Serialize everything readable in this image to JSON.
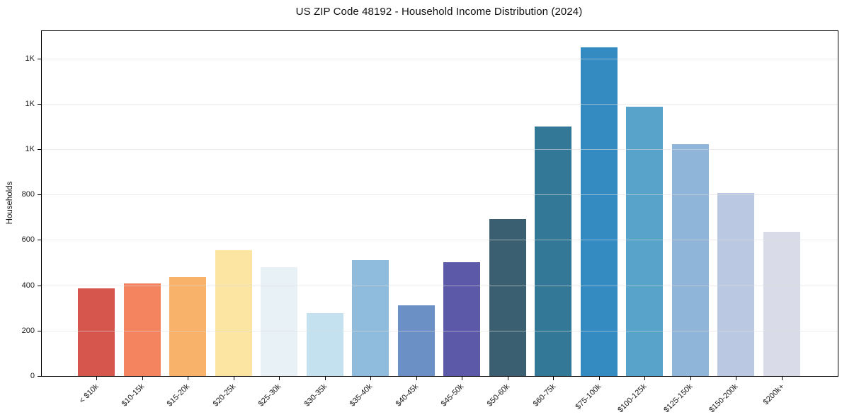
{
  "chart_data": {
    "type": "bar",
    "title": "US ZIP Code 48192 - Household Income Distribution (2024)",
    "xlabel": "",
    "ylabel": "Households",
    "categories": [
      "< $10k",
      "$10-15k",
      "$15-20k",
      "$20-25k",
      "$25-30k",
      "$30-35k",
      "$35-40k",
      "$40-45k",
      "$45-50k",
      "$50-60k",
      "$60-75k",
      "$75-100k",
      "$100-125k",
      "$125-150k",
      "$150-200k",
      "$200k+"
    ],
    "values": [
      385,
      408,
      436,
      553,
      479,
      278,
      512,
      312,
      500,
      692,
      1101,
      1447,
      1186,
      1021,
      806,
      637
    ],
    "bar_colors": [
      "#d6564e",
      "#f4845f",
      "#f9b269",
      "#fce4a2",
      "#e8f2f6",
      "#c3e1ef",
      "#8fbcdc",
      "#6b90c6",
      "#5c59a8",
      "#3a5f71",
      "#347897",
      "#338bc1",
      "#58a3c9",
      "#8fb5d9",
      "#bac8e2",
      "#d9dbe8"
    ],
    "ylim": [
      0,
      1520
    ],
    "yticks": [
      {
        "value": 0,
        "label": "0"
      },
      {
        "value": 200,
        "label": "200"
      },
      {
        "value": 400,
        "label": "400"
      },
      {
        "value": 600,
        "label": "600"
      },
      {
        "value": 800,
        "label": "800"
      },
      {
        "value": 1000,
        "label": "1K"
      },
      {
        "value": 1200,
        "label": "1K"
      },
      {
        "value": 1400,
        "label": "1K"
      }
    ],
    "grid": "horizontal",
    "legend": "none",
    "background_color": "#ffffff",
    "spine_color": "#000000",
    "text_color": "#1a1a1a"
  }
}
